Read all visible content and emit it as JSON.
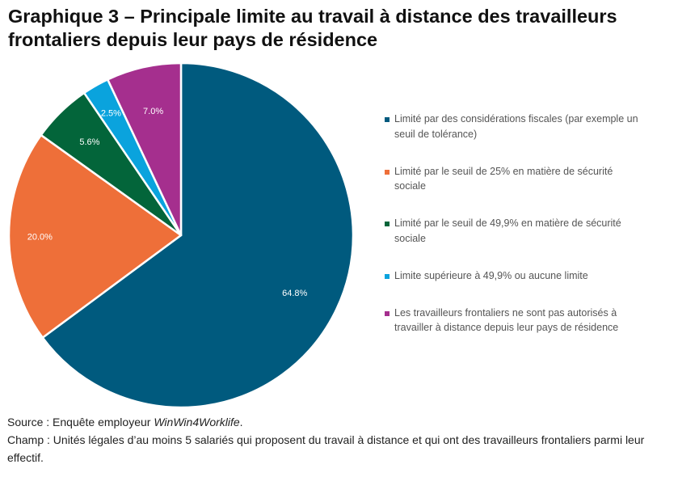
{
  "title": "Graphique 3 – Principale limite au travail à distance des travailleurs frontaliers depuis leur pays de résidence",
  "chart_data": {
    "type": "pie",
    "categories": [
      "Limité par des considérations fiscales (par exemple un seuil de tolérance)",
      "Limité par le seuil de 25% en matière de sécurité sociale",
      "Limité par le seuil de 49,9% en matière de sécurité sociale",
      "Limite supérieure à 49,9% ou aucune limite",
      "Les travailleurs frontaliers ne sont pas autorisés à travailler à distance depuis leur pays de résidence"
    ],
    "values": [
      64.8,
      20.0,
      5.6,
      2.5,
      7.0
    ],
    "data_labels": [
      "64.8%",
      "20.0%",
      "5.6%",
      "2.5%",
      "7.0%"
    ],
    "colors": [
      "#005A7E",
      "#EE6F39",
      "#03653A",
      "#0AA3DD",
      "#A52F8E"
    ],
    "legend_position": "right"
  },
  "footer": {
    "source_prefix": "Source : Enquête employeur ",
    "source_name": "WinWin4Worklife",
    "source_suffix": ".",
    "champ": "Champ : Unités légales d’au moins 5 salariés qui proposent du travail à distance et qui ont des travailleurs frontaliers parmi leur effectif."
  }
}
